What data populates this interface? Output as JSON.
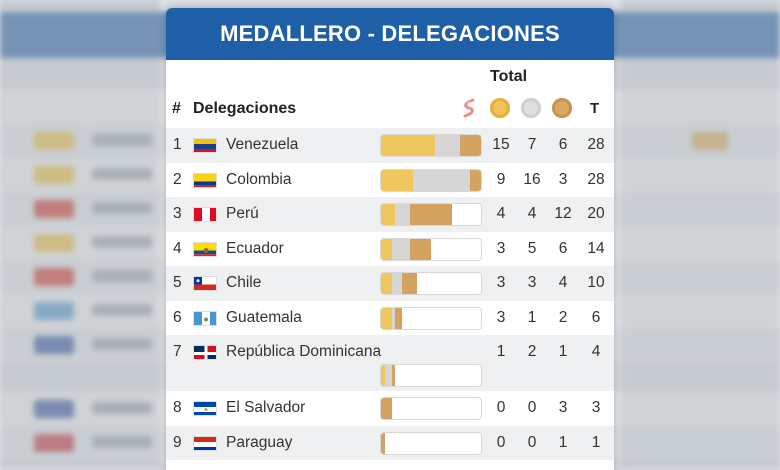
{
  "title": "MEDALLERO - DELEGACIONES",
  "header": {
    "total": "Total",
    "rank_symbol": "#",
    "delegations": "Delegaciones",
    "total_short": "T",
    "sort_icon": "sort-icon",
    "medal_icons": [
      "gold-medal-icon",
      "silver-medal-icon",
      "bronze-medal-icon"
    ]
  },
  "colors": {
    "header_blue": "#1f5fa8",
    "gold": "#f0c75e",
    "silver": "#d6d6d6",
    "bronze": "#d3a35f"
  },
  "rows": [
    {
      "rank": "1",
      "name": "Venezuela",
      "flag": "venezuela-flag-icon",
      "gold": "15",
      "silver": "7",
      "bronze": "6",
      "total": "28"
    },
    {
      "rank": "2",
      "name": "Colombia",
      "flag": "colombia-flag-icon",
      "gold": "9",
      "silver": "16",
      "bronze": "3",
      "total": "28"
    },
    {
      "rank": "3",
      "name": "Perú",
      "flag": "peru-flag-icon",
      "gold": "4",
      "silver": "4",
      "bronze": "12",
      "total": "20"
    },
    {
      "rank": "4",
      "name": "Ecuador",
      "flag": "ecuador-flag-icon",
      "gold": "3",
      "silver": "5",
      "bronze": "6",
      "total": "14"
    },
    {
      "rank": "5",
      "name": "Chile",
      "flag": "chile-flag-icon",
      "gold": "3",
      "silver": "3",
      "bronze": "4",
      "total": "10"
    },
    {
      "rank": "6",
      "name": "Guatemala",
      "flag": "guatemala-flag-icon",
      "gold": "3",
      "silver": "1",
      "bronze": "2",
      "total": "6"
    },
    {
      "rank": "7",
      "name": "República Dominicana",
      "flag": "dominican-republic-flag-icon",
      "gold": "1",
      "silver": "2",
      "bronze": "1",
      "total": "4"
    },
    {
      "rank": "8",
      "name": "El Salvador",
      "flag": "el-salvador-flag-icon",
      "gold": "0",
      "silver": "0",
      "bronze": "3",
      "total": "3"
    },
    {
      "rank": "9",
      "name": "Paraguay",
      "flag": "paraguay-flag-icon",
      "gold": "0",
      "silver": "0",
      "bronze": "1",
      "total": "1"
    }
  ],
  "bar_max_total": 28
}
